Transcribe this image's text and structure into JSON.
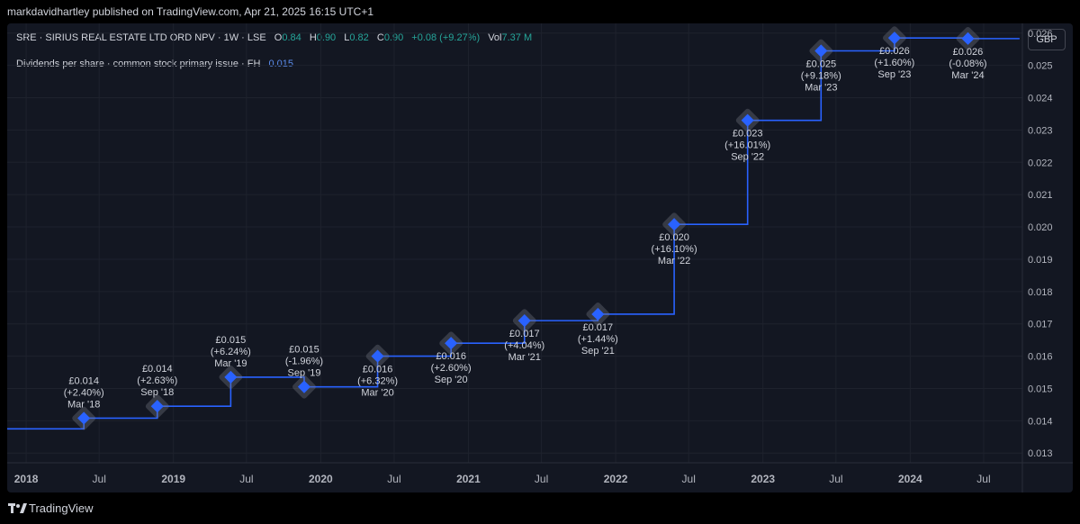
{
  "header": {
    "publisher_line": "markdavidhartley published on TradingView.com, Apr 21, 2025 16:15 UTC+1"
  },
  "symbol_bar": {
    "symbol": "SRE · SIRIUS REAL ESTATE LTD ORD NPV · 1W · LSE",
    "o_label": "O",
    "o_value": "0.84",
    "h_label": "H",
    "h_value": "0.90",
    "l_label": "L",
    "l_value": "0.82",
    "c_label": "C",
    "c_value": "0.90",
    "change": "+0.08 (+9.27%)",
    "vol_label": "Vol",
    "vol_value": "7.37 M"
  },
  "indicator": {
    "label": "Dividends per share · common stock primary issue · FH",
    "value": "0.015"
  },
  "currency_button": "GBP",
  "footer": {
    "brand": "TradingView"
  },
  "colors": {
    "line": "#2962ff",
    "marker": "#2962ff",
    "panel_bg": "#131722",
    "up": "#26a69a",
    "grid": "#1e222d"
  },
  "chart_data": {
    "type": "line",
    "step": true,
    "xlim": [
      "2017-11-15",
      "2024-10-05"
    ],
    "ylim": [
      0.0127,
      0.0263
    ],
    "y_ticks": [
      "0.026",
      "0.025",
      "0.024",
      "0.023",
      "0.022",
      "0.021",
      "0.020",
      "0.019",
      "0.018",
      "0.017",
      "0.016",
      "0.015",
      "0.014",
      "0.013"
    ],
    "x_ticks": [
      {
        "label": "2018",
        "date": "2018-01-01",
        "bold": true
      },
      {
        "label": "Jul",
        "date": "2018-07-01",
        "bold": false
      },
      {
        "label": "2019",
        "date": "2019-01-01",
        "bold": true
      },
      {
        "label": "Jul",
        "date": "2019-07-01",
        "bold": false
      },
      {
        "label": "2020",
        "date": "2020-01-01",
        "bold": true
      },
      {
        "label": "Jul",
        "date": "2020-07-01",
        "bold": false
      },
      {
        "label": "2021",
        "date": "2021-01-01",
        "bold": true
      },
      {
        "label": "Jul",
        "date": "2021-07-01",
        "bold": false
      },
      {
        "label": "2022",
        "date": "2022-01-01",
        "bold": true
      },
      {
        "label": "Jul",
        "date": "2022-07-01",
        "bold": false
      },
      {
        "label": "2023",
        "date": "2023-01-01",
        "bold": true
      },
      {
        "label": "Jul",
        "date": "2023-07-01",
        "bold": false
      },
      {
        "label": "2024",
        "date": "2024-01-01",
        "bold": true
      },
      {
        "label": "Jul",
        "date": "2024-07-01",
        "bold": false
      }
    ],
    "start_value": 0.01375,
    "line_end": "2024-09-28",
    "points": [
      {
        "date": "2018-05-24",
        "y": 0.01408,
        "label": "£0.014",
        "change": "(+2.40%)",
        "period": "Mar '18"
      },
      {
        "date": "2018-11-22",
        "y": 0.01445,
        "label": "£0.014",
        "change": "(+2.63%)",
        "period": "Sep '18"
      },
      {
        "date": "2019-05-23",
        "y": 0.01535,
        "label": "£0.015",
        "change": "(+6.24%)",
        "period": "Mar '19"
      },
      {
        "date": "2019-11-21",
        "y": 0.01505,
        "label": "£0.015",
        "change": "(-1.96%)",
        "period": "Sep '19"
      },
      {
        "date": "2020-05-21",
        "y": 0.016,
        "label": "£0.016",
        "change": "(+6.32%)",
        "period": "Mar '20"
      },
      {
        "date": "2020-11-19",
        "y": 0.0164,
        "label": "£0.016",
        "change": "(+2.60%)",
        "period": "Sep '20"
      },
      {
        "date": "2021-05-20",
        "y": 0.0171,
        "label": "£0.017",
        "change": "(+4.04%)",
        "period": "Mar '21"
      },
      {
        "date": "2021-11-18",
        "y": 0.0173,
        "label": "£0.017",
        "change": "(+1.44%)",
        "period": "Sep '21"
      },
      {
        "date": "2022-05-26",
        "y": 0.02008,
        "label": "£0.020",
        "change": "(+16.10%)",
        "period": "Mar '22"
      },
      {
        "date": "2022-11-24",
        "y": 0.0233,
        "label": "£0.023",
        "change": "(+16.01%)",
        "period": "Sep '22"
      },
      {
        "date": "2023-05-25",
        "y": 0.02545,
        "label": "£0.025",
        "change": "(+9.18%)",
        "period": "Mar '23"
      },
      {
        "date": "2023-11-23",
        "y": 0.02585,
        "label": "£0.026",
        "change": "(+1.60%)",
        "period": "Sep '23"
      },
      {
        "date": "2024-05-23",
        "y": 0.02583,
        "label": "£0.026",
        "change": "(-0.08%)",
        "period": "Mar '24"
      }
    ],
    "label_side": [
      "above",
      "above",
      "above",
      "above",
      "below",
      "below",
      "below",
      "below",
      "below",
      "below",
      "below",
      "below",
      "below"
    ]
  }
}
